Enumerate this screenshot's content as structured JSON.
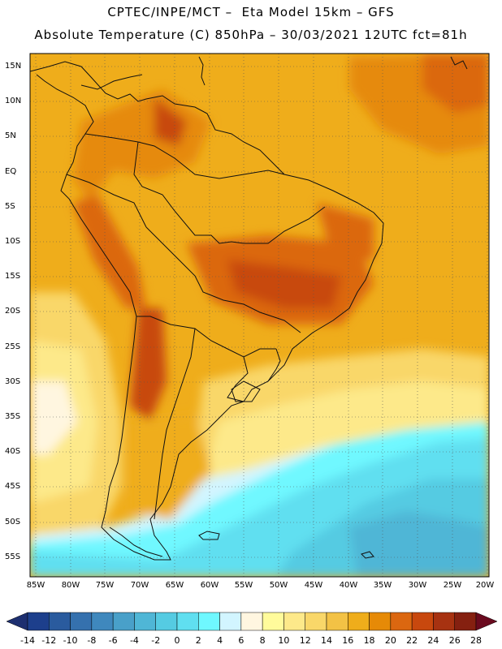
{
  "title_line1": "CPTEC/INPE/MCT –  Eta Model 15km – GFS",
  "title_line2": "Absolute Temperature (C) 850hPa – 30/03/2021 12UTC fct=81h",
  "lat_labels": [
    "15N",
    "10N",
    "5N",
    "EQ",
    "5S",
    "10S",
    "15S",
    "20S",
    "25S",
    "30S",
    "35S",
    "40S",
    "45S",
    "50S",
    "55S"
  ],
  "lon_labels": [
    "85W",
    "80W",
    "75W",
    "70W",
    "65W",
    "60W",
    "55W",
    "50W",
    "45W",
    "40W",
    "35W",
    "30W",
    "25W",
    "20W"
  ],
  "colorbar": {
    "labels": [
      "-14",
      "-12",
      "-10",
      "-8",
      "-6",
      "-4",
      "-2",
      "0",
      "2",
      "4",
      "6",
      "8",
      "10",
      "12",
      "14",
      "16",
      "18",
      "20",
      "22",
      "24",
      "26",
      "28"
    ],
    "colors": [
      "#1d3f8c",
      "#2a5b9e",
      "#3571ae",
      "#3f88bd",
      "#49a0c9",
      "#4fb6d6",
      "#55cbe2",
      "#60dff0",
      "#6ff8ff",
      "#d2f5ff",
      "#fff6e0",
      "#fffb9b",
      "#fde98a",
      "#f9d769",
      "#f3c245",
      "#efad1b",
      "#e68a07",
      "#db6710",
      "#c8480e",
      "#a73211",
      "#852010"
    ]
  }
}
